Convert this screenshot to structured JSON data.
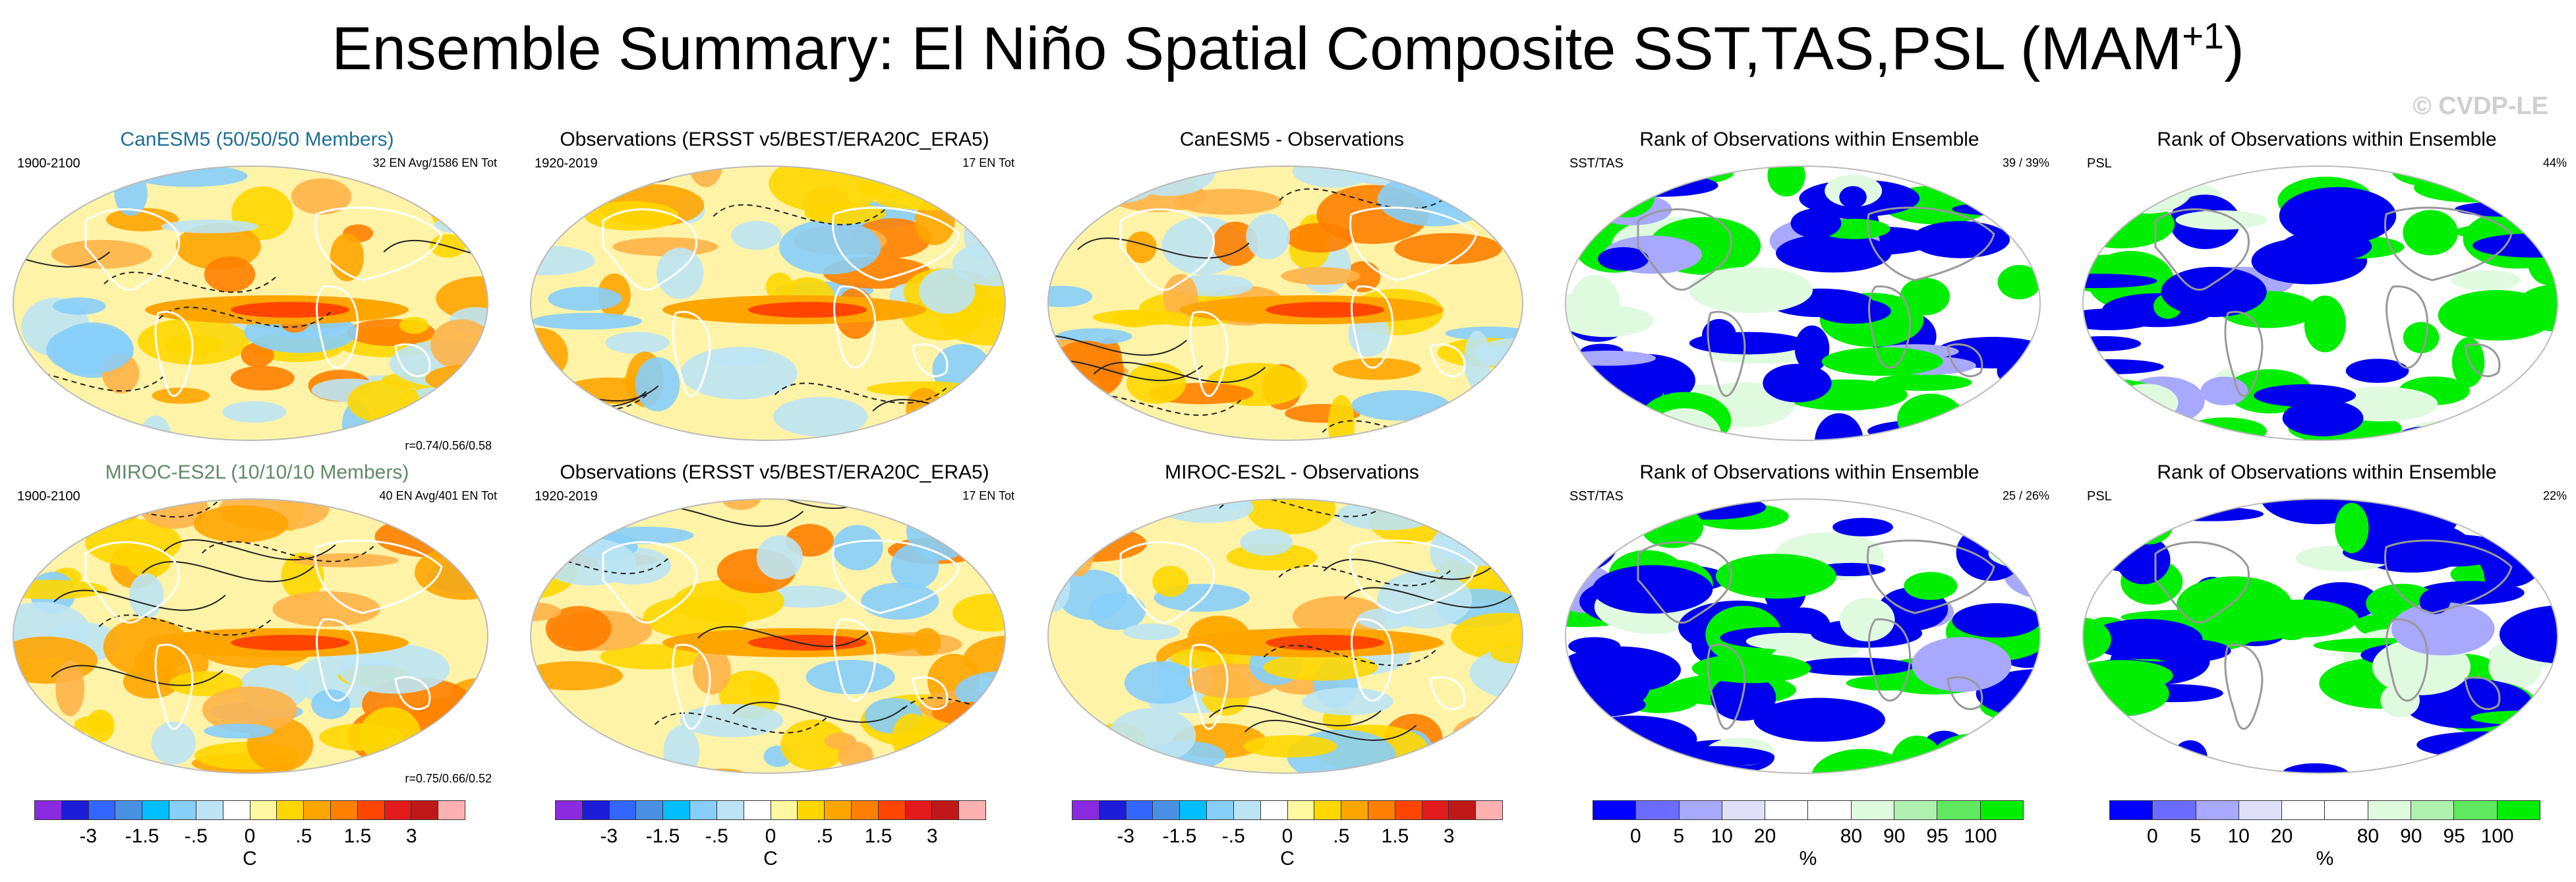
{
  "title": "Ensemble Summary: El Niño Spatial Composite SST,TAS,PSL (MAM",
  "title_sup": "+1",
  "title_end": ")",
  "watermark": "© CVDP-LE",
  "panels": {
    "p11": {
      "title": "CanESM5 (50/50/50 Members)",
      "left": "1900-2100",
      "right": "32 EN Avg/1586 EN Tot",
      "bottom": "r=0.74/0.56/0.58"
    },
    "p12": {
      "title": "Observations (ERSST v5/BEST/ERA20C_ERA5)",
      "left": "1920-2019",
      "right": "17 EN Tot"
    },
    "p13": {
      "title": "CanESM5 - Observations"
    },
    "p14": {
      "title": "Rank of Observations within Ensemble",
      "left": "SST/TAS",
      "right": "39 /  39%"
    },
    "p15": {
      "title": "Rank of Observations within Ensemble",
      "left": "PSL",
      "right": "44%"
    },
    "p21": {
      "title": "MIROC-ES2L (10/10/10 Members)",
      "left": "1900-2100",
      "right": "40 EN Avg/401 EN Tot",
      "bottom": "r=0.75/0.66/0.52"
    },
    "p22": {
      "title": "Observations (ERSST v5/BEST/ERA20C_ERA5)",
      "left": "1920-2019",
      "right": "17 EN Tot"
    },
    "p23": {
      "title": "MIROC-ES2L - Observations"
    },
    "p24": {
      "title": "Rank of Observations within Ensemble",
      "left": "SST/TAS",
      "right": "25 /  26%"
    },
    "p25": {
      "title": "Rank of Observations within Ensemble",
      "left": "PSL",
      "right": "22%"
    }
  },
  "colorbars": {
    "temp": {
      "colors": [
        "#8a2be2",
        "#1c1cd9",
        "#3366ff",
        "#4a90e2",
        "#00bfff",
        "#87cefa",
        "#bde4f4",
        "#ffffff",
        "#fff8a0",
        "#ffd700",
        "#ffa500",
        "#ff7f00",
        "#ff4500",
        "#e31a1c",
        "#c01818",
        "#ffb0b0"
      ],
      "labels": [
        "-3",
        "-1.5",
        "-.5",
        "0",
        ".5",
        "1.5",
        "3"
      ],
      "label_positions": [
        2,
        4,
        6,
        8,
        10,
        12,
        14
      ],
      "unit": "C"
    },
    "rank": {
      "colors": [
        "#0000ff",
        "#6b6bff",
        "#a8a8ff",
        "#e0e0f8",
        "#ffffff",
        "#ffffff",
        "#e0fae0",
        "#b0f0b0",
        "#60e860",
        "#00ee00"
      ],
      "labels": [
        "0",
        "5",
        "10",
        "20",
        "80",
        "90",
        "95",
        "100"
      ],
      "label_positions": [
        1,
        2,
        3,
        4,
        6,
        7,
        8,
        9
      ],
      "unit": "%"
    }
  },
  "chart_data": [
    {
      "type": "heatmap",
      "title": "CanESM5 (50/50/50 Members)",
      "field": "SST/TAS composite with PSL contours",
      "colorbar": "temp",
      "seed": 11
    },
    {
      "type": "heatmap",
      "title": "Observations (ERSST v5/BEST/ERA20C_ERA5)",
      "field": "SST/TAS composite with PSL contours",
      "colorbar": "temp",
      "seed": 12
    },
    {
      "type": "heatmap",
      "title": "CanESM5 - Observations",
      "field": "difference",
      "colorbar": "temp",
      "seed": 13
    },
    {
      "type": "heatmap",
      "title": "Rank of Observations within Ensemble",
      "field": "SST/TAS rank",
      "colorbar": "rank",
      "seed": 14
    },
    {
      "type": "heatmap",
      "title": "Rank of Observations within Ensemble",
      "field": "PSL rank",
      "colorbar": "rank",
      "seed": 15
    },
    {
      "type": "heatmap",
      "title": "MIROC-ES2L (10/10/10 Members)",
      "field": "SST/TAS composite with PSL contours",
      "colorbar": "temp",
      "seed": 21
    },
    {
      "type": "heatmap",
      "title": "Observations (ERSST v5/BEST/ERA20C_ERA5)",
      "field": "SST/TAS composite with PSL contours",
      "colorbar": "temp",
      "seed": 22
    },
    {
      "type": "heatmap",
      "title": "MIROC-ES2L - Observations",
      "field": "difference",
      "colorbar": "temp",
      "seed": 23
    },
    {
      "type": "heatmap",
      "title": "Rank of Observations within Ensemble",
      "field": "SST/TAS rank",
      "colorbar": "rank",
      "seed": 24
    },
    {
      "type": "heatmap",
      "title": "Rank of Observations within Ensemble",
      "field": "PSL rank",
      "colorbar": "rank",
      "seed": 25
    }
  ]
}
